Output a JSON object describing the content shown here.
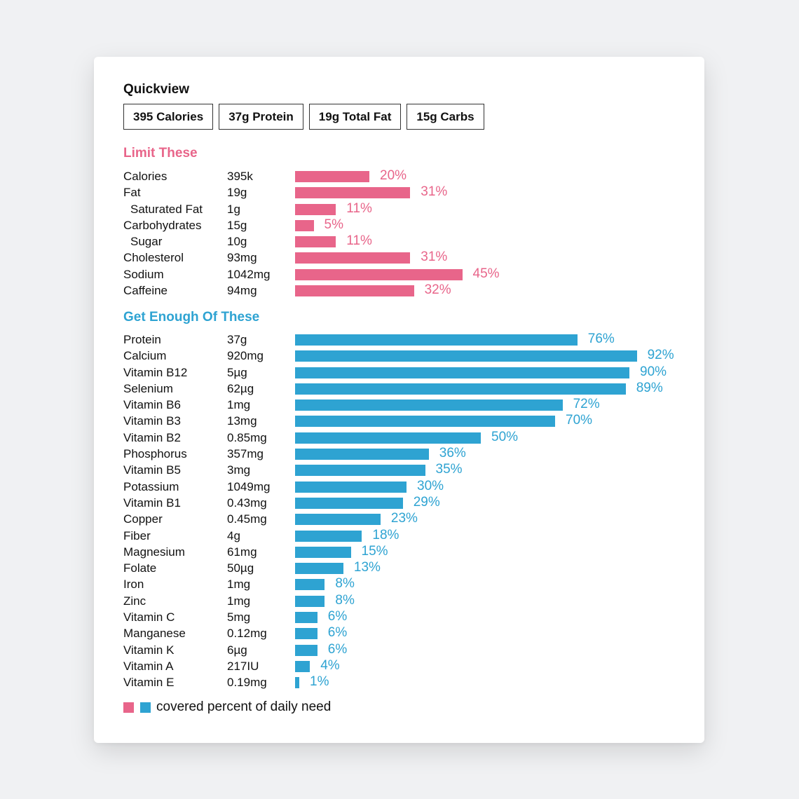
{
  "quickview": {
    "title": "Quickview",
    "pills": [
      "395 Calories",
      "37g Protein",
      "19g Total Fat",
      "15g Carbs"
    ]
  },
  "colors": {
    "limit": "#e8658a",
    "enough": "#2ea3d2"
  },
  "chart_data": [
    {
      "type": "bar",
      "title": "Limit These",
      "orientation": "horizontal",
      "color": "#e8658a",
      "xlim": [
        0,
        100
      ],
      "rows": [
        {
          "name": "Calories",
          "amount": "395k",
          "percent": 20,
          "sub": false
        },
        {
          "name": "Fat",
          "amount": "19g",
          "percent": 31,
          "sub": false
        },
        {
          "name": "Saturated Fat",
          "amount": "1g",
          "percent": 11,
          "sub": true
        },
        {
          "name": "Carbohydrates",
          "amount": "15g",
          "percent": 5,
          "sub": false
        },
        {
          "name": "Sugar",
          "amount": "10g",
          "percent": 11,
          "sub": true
        },
        {
          "name": "Cholesterol",
          "amount": "93mg",
          "percent": 31,
          "sub": false
        },
        {
          "name": "Sodium",
          "amount": "1042mg",
          "percent": 45,
          "sub": false
        },
        {
          "name": "Caffeine",
          "amount": "94mg",
          "percent": 32,
          "sub": false
        }
      ]
    },
    {
      "type": "bar",
      "title": "Get Enough Of These",
      "orientation": "horizontal",
      "color": "#2ea3d2",
      "xlim": [
        0,
        100
      ],
      "rows": [
        {
          "name": "Protein",
          "amount": "37g",
          "percent": 76
        },
        {
          "name": "Calcium",
          "amount": "920mg",
          "percent": 92
        },
        {
          "name": "Vitamin B12",
          "amount": "5µg",
          "percent": 90
        },
        {
          "name": "Selenium",
          "amount": "62µg",
          "percent": 89
        },
        {
          "name": "Vitamin B6",
          "amount": "1mg",
          "percent": 72
        },
        {
          "name": "Vitamin B3",
          "amount": "13mg",
          "percent": 70
        },
        {
          "name": "Vitamin B2",
          "amount": "0.85mg",
          "percent": 50
        },
        {
          "name": "Phosphorus",
          "amount": "357mg",
          "percent": 36
        },
        {
          "name": "Vitamin B5",
          "amount": "3mg",
          "percent": 35
        },
        {
          "name": "Potassium",
          "amount": "1049mg",
          "percent": 30
        },
        {
          "name": "Vitamin B1",
          "amount": "0.43mg",
          "percent": 29
        },
        {
          "name": "Copper",
          "amount": "0.45mg",
          "percent": 23
        },
        {
          "name": "Fiber",
          "amount": "4g",
          "percent": 18
        },
        {
          "name": "Magnesium",
          "amount": "61mg",
          "percent": 15
        },
        {
          "name": "Folate",
          "amount": "50µg",
          "percent": 13
        },
        {
          "name": "Iron",
          "amount": "1mg",
          "percent": 8
        },
        {
          "name": "Zinc",
          "amount": "1mg",
          "percent": 8
        },
        {
          "name": "Vitamin C",
          "amount": "5mg",
          "percent": 6
        },
        {
          "name": "Manganese",
          "amount": "0.12mg",
          "percent": 6
        },
        {
          "name": "Vitamin K",
          "amount": "6µg",
          "percent": 6
        },
        {
          "name": "Vitamin A",
          "amount": "217IU",
          "percent": 4
        },
        {
          "name": "Vitamin E",
          "amount": "0.19mg",
          "percent": 1
        }
      ]
    }
  ],
  "legend": {
    "text": "covered percent of daily need"
  }
}
